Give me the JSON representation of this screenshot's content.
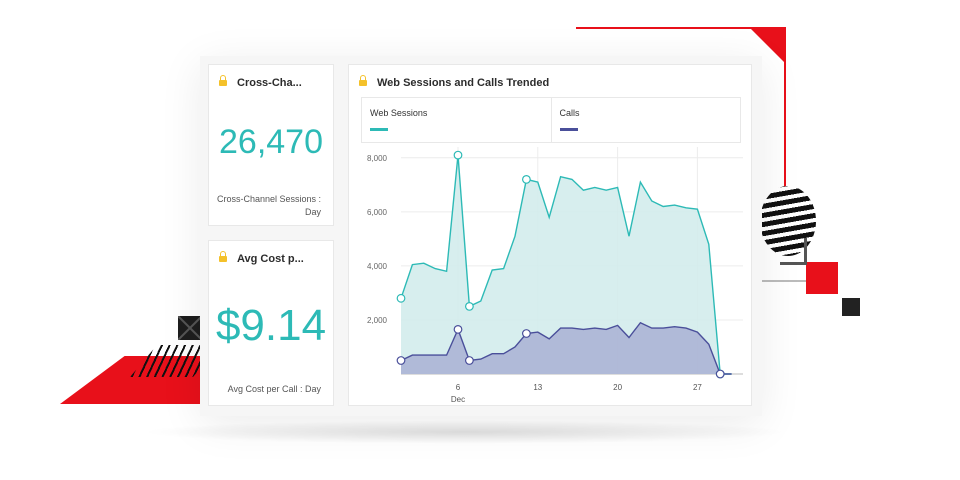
{
  "colors": {
    "teal": "#2dbab6",
    "teal_fill": "#d3ecec",
    "navy": "#4a4f9a",
    "navy_fill": "#aeb6d6",
    "accent_red": "#e8101a",
    "lock": "#f4c12a"
  },
  "cards": {
    "sessions": {
      "title": "Cross-Cha...",
      "value": "26,470",
      "label_line1": "Cross-Channel Sessions :",
      "label_line2": "Day"
    },
    "cost": {
      "title": "Avg Cost p...",
      "value": "$9.14",
      "label": "Avg Cost per Call : Day"
    }
  },
  "chart": {
    "title": "Web Sessions and Calls Trended",
    "legend": [
      {
        "name": "Web Sessions",
        "color_key": "teal"
      },
      {
        "name": "Calls",
        "color_key": "navy"
      }
    ]
  },
  "chart_data": {
    "type": "area",
    "title": "Web Sessions and Calls Trended",
    "x": [
      1,
      2,
      3,
      4,
      5,
      6,
      7,
      8,
      9,
      10,
      11,
      12,
      13,
      14,
      15,
      16,
      17,
      18,
      19,
      20,
      21,
      22,
      23,
      24,
      25,
      26,
      27,
      28,
      29,
      30
    ],
    "x_ticks": [
      "6",
      "13",
      "20",
      "27"
    ],
    "x_tick_values": [
      6,
      13,
      20,
      27
    ],
    "x_sublabel": "Dec",
    "ylim": [
      0,
      8400
    ],
    "y_ticks": [
      "8,000",
      "6,000",
      "4,000",
      "2,000"
    ],
    "y_tick_values": [
      8000,
      6000,
      4000,
      2000
    ],
    "grid": true,
    "series": [
      {
        "name": "Web Sessions",
        "values": [
          2800,
          4050,
          4100,
          3900,
          3800,
          8100,
          2500,
          2700,
          3850,
          3900,
          5100,
          7200,
          7100,
          5800,
          7300,
          7200,
          6800,
          6900,
          6800,
          6900,
          5100,
          7100,
          6400,
          6200,
          6250,
          6150,
          6100,
          4800,
          0,
          0
        ],
        "marker_indices": [
          0,
          5,
          6,
          11,
          28
        ]
      },
      {
        "name": "Calls",
        "values": [
          500,
          700,
          700,
          700,
          700,
          1650,
          500,
          550,
          750,
          750,
          1000,
          1500,
          1550,
          1300,
          1700,
          1700,
          1650,
          1700,
          1650,
          1800,
          1350,
          1900,
          1700,
          1700,
          1750,
          1700,
          1550,
          1100,
          0,
          0
        ],
        "marker_indices": [
          0,
          5,
          6,
          11,
          28
        ]
      }
    ]
  }
}
